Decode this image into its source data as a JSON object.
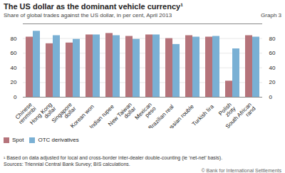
{
  "chart_data": {
    "type": "bar",
    "title": "The US dollar as the dominant vehicle currency¹",
    "subtitle": "Share of global trades against the US dollar, in per cent, April 2013",
    "annotations": [
      "Graph 3",
      "¹ Based on data adjusted for local and cross-border inter-dealer double-counting (ie ‘net-net’ basis).",
      "Sources: Triennial Central Bank Survey; BIS calculations.",
      "© Bank for International Settlements"
    ],
    "categories": [
      "Chinese\nrenminbi",
      "Hong Kong\ndollar",
      "Singapore\ndollar",
      "Korean won",
      "Indian rupee",
      "New Taiwan\ndollar",
      "Mexican\npeso",
      "Brazilian real",
      "Russian rouble",
      "Turkish lira",
      "Polish\nzloty",
      "South African\nrand"
    ],
    "series": [
      {
        "name": "Spot",
        "color": "#b5737a",
        "values": [
          82,
          73,
          74,
          85,
          87,
          83,
          85,
          80,
          84,
          82,
          22,
          84
        ]
      },
      {
        "name": "OTC derivatives",
        "color": "#7ab0d4",
        "values": [
          90,
          84,
          79,
          85,
          84,
          79,
          85,
          72,
          82,
          83,
          66,
          82
        ]
      }
    ],
    "ylim": [
      0,
      100
    ],
    "yticks": [
      0,
      20,
      40,
      60,
      80
    ],
    "grid": true,
    "legend": "lower left"
  }
}
